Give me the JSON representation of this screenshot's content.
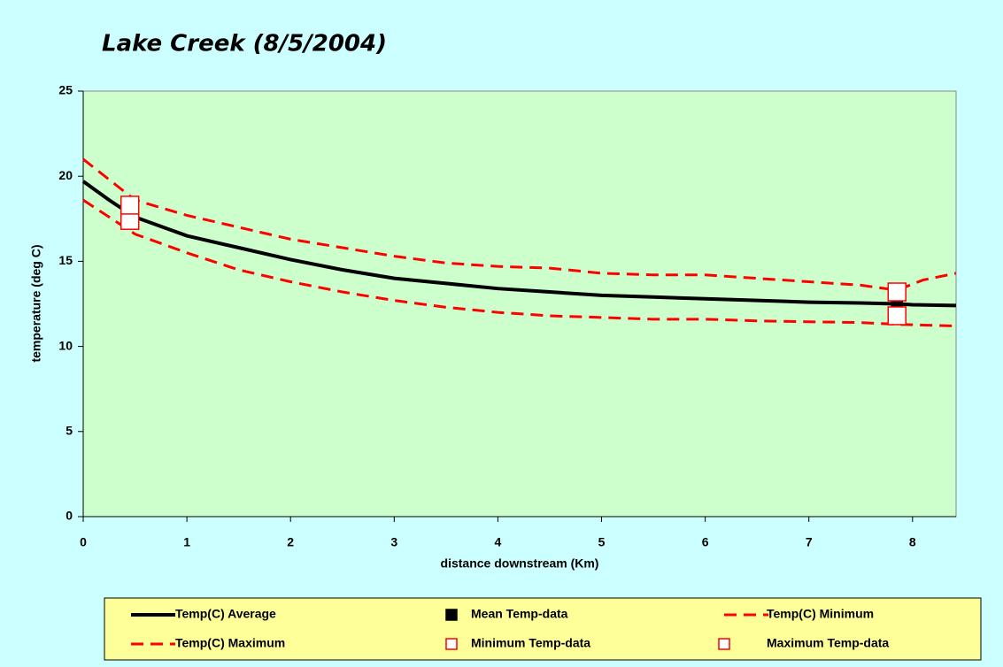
{
  "chart_data": {
    "type": "line",
    "title": "Lake Creek (8/5/2004)",
    "x_label": "distance downstream (Km)",
    "y_label": "temperature (deg C)",
    "xlim": [
      0,
      8.42
    ],
    "ylim": [
      0,
      25
    ],
    "xticks": [
      0,
      1,
      2,
      3,
      4,
      5,
      6,
      7,
      8
    ],
    "yticks": [
      0,
      5,
      10,
      15,
      20,
      25
    ],
    "series": [
      {
        "name": "Temp(C) Average",
        "color": "#000000",
        "style": "solid",
        "x": [
          0,
          0.25,
          0.5,
          1,
          1.5,
          2,
          2.5,
          3,
          3.5,
          4,
          4.5,
          5,
          5.5,
          6,
          6.5,
          7,
          7.5,
          7.85,
          8,
          8.42
        ],
        "values": [
          19.7,
          18.6,
          17.6,
          16.5,
          15.8,
          15.1,
          14.5,
          14.0,
          13.7,
          13.4,
          13.2,
          13.0,
          12.9,
          12.8,
          12.7,
          12.6,
          12.55,
          12.5,
          12.45,
          12.4
        ]
      },
      {
        "name": "Mean Temp-data",
        "color": "#000000",
        "style": "filled-square",
        "x": [
          0.45,
          7.85
        ],
        "values": [
          17.85,
          12.5
        ]
      },
      {
        "name": "Temp(C) Minimum",
        "color": "#ff0000",
        "style": "dashed",
        "x": [
          0,
          0.5,
          1,
          1.5,
          2,
          2.5,
          3,
          3.5,
          4,
          4.5,
          5,
          5.5,
          6,
          6.5,
          7,
          7.5,
          7.85,
          8.42
        ],
        "values": [
          18.6,
          16.6,
          15.5,
          14.5,
          13.8,
          13.2,
          12.7,
          12.3,
          12.0,
          11.8,
          11.7,
          11.6,
          11.6,
          11.5,
          11.45,
          11.4,
          11.3,
          11.2
        ]
      },
      {
        "name": "Temp(C) Maximum",
        "color": "#ff0000",
        "style": "dashed",
        "x": [
          0,
          0.5,
          1,
          1.5,
          2,
          2.5,
          3,
          3.5,
          4,
          4.5,
          5,
          5.5,
          6,
          6.5,
          7,
          7.5,
          7.85,
          8.1,
          8.42
        ],
        "values": [
          21.0,
          18.6,
          17.7,
          17.0,
          16.3,
          15.8,
          15.3,
          14.9,
          14.7,
          14.6,
          14.3,
          14.2,
          14.2,
          14.0,
          13.8,
          13.6,
          13.3,
          13.9,
          14.3
        ]
      },
      {
        "name": "Minimum Temp-data",
        "color": "#ff0000",
        "style": "open-square",
        "x": [
          0.45,
          7.85
        ],
        "values": [
          17.4,
          11.8
        ]
      },
      {
        "name": "Maximum Temp-data",
        "color": "#ff0000",
        "style": "open-square",
        "x": [
          0.45,
          7.85
        ],
        "values": [
          18.3,
          13.2
        ]
      }
    ]
  }
}
